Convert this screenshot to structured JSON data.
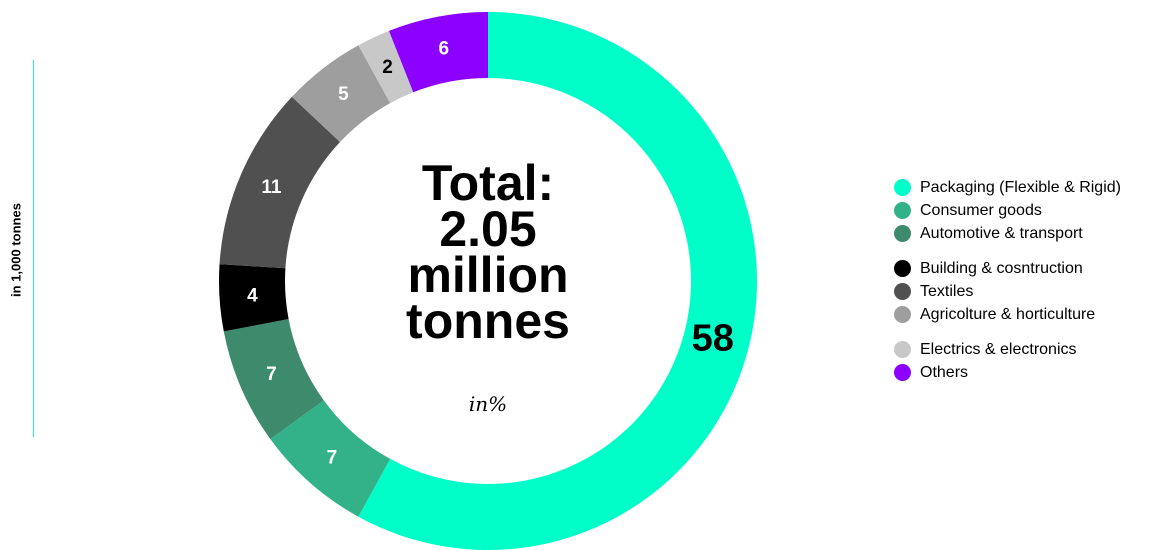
{
  "side_label": "in 1,000 tonnes",
  "center": {
    "title_lines": [
      "Total:",
      "2.05",
      "million",
      "tonnes"
    ],
    "unit": "in%"
  },
  "chart_data": {
    "type": "pie",
    "title": "",
    "donut": true,
    "slices": [
      {
        "label": "Packaging (Flexible & Rigid)",
        "value": 58,
        "color": "#00FFC8"
      },
      {
        "label": "Consumer goods",
        "value": 7,
        "color": "#33B28A"
      },
      {
        "label": "Automotive & transport",
        "value": 7,
        "color": "#3D8A6D"
      },
      {
        "label": "Building & cosntruction",
        "value": 4,
        "color": "#000000"
      },
      {
        "label": "Textiles",
        "value": 11,
        "color": "#505050"
      },
      {
        "label": "Agricolture & horticulture",
        "value": 5,
        "color": "#9E9E9E"
      },
      {
        "label": "Electrics & electronics",
        "value": 2,
        "color": "#C8C8C8"
      },
      {
        "label": "Others",
        "value": 6,
        "color": "#8B00FF"
      }
    ],
    "legend_position": "right",
    "legend_groups": [
      [
        0,
        1,
        2
      ],
      [
        3,
        4,
        5
      ],
      [
        6,
        7
      ]
    ]
  }
}
